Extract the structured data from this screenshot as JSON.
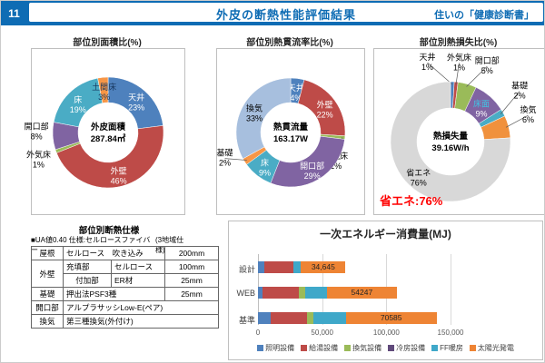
{
  "header": {
    "slide_number": "11",
    "title": "外皮の断熱性能評価結果",
    "right_label": "住いの「健康診断書」",
    "bar_color": "#0E6CB4"
  },
  "chart_data": [
    {
      "type": "pie",
      "title": "部位別面積比(%)",
      "center_label": [
        "外皮面積",
        "287.84㎡"
      ],
      "slices": [
        {
          "label": "天井",
          "pct": 23,
          "color": "#4E81BD",
          "text": "#FFFFFF",
          "pos": "in"
        },
        {
          "label": "外壁",
          "pct": 46,
          "color": "#BE4B48",
          "text": "#FFFFFF",
          "pos": "in"
        },
        {
          "label": "外気床",
          "pct": 1,
          "color": "#9ABB59",
          "text": "#000000",
          "pos": "out"
        },
        {
          "label": "開口部",
          "pct": 8,
          "color": "#8064A2",
          "text": "#000000",
          "pos": "out"
        },
        {
          "label": "床",
          "pct": 19,
          "color": "#4AACC5",
          "text": "#FFFFFF",
          "pos": "in"
        },
        {
          "label": "土間床",
          "pct": 3,
          "color": "#F79646",
          "text": "#17375E",
          "pos": "in"
        }
      ]
    },
    {
      "type": "pie",
      "title": "部位別熱貫流率比(%)",
      "center_label": [
        "熱貫流量",
        "163.17W"
      ],
      "slices": [
        {
          "label": "天井",
          "pct": 4,
          "color": "#4E81BD",
          "text": "#FFFFFF",
          "pos": "in"
        },
        {
          "label": "外壁",
          "pct": 22,
          "color": "#BE4B48",
          "text": "#FFFFFF",
          "pos": "in"
        },
        {
          "label": "外気床",
          "pct": 1,
          "color": "#9ABB59",
          "text": "#000000",
          "pos": "out"
        },
        {
          "label": "開口部",
          "pct": 29,
          "color": "#8064A2",
          "text": "#FFFFFF",
          "pos": "in"
        },
        {
          "label": "床",
          "pct": 9,
          "color": "#4AACC5",
          "text": "#FFFFFF",
          "pos": "in"
        },
        {
          "label": "基礎",
          "pct": 2,
          "color": "#F79646",
          "text": "#000000",
          "pos": "out"
        },
        {
          "label": "換気",
          "pct": 33,
          "color": "#A7BFDE",
          "text": "#000000",
          "pos": "in"
        }
      ]
    },
    {
      "type": "pie",
      "title": "部位別熱損失比(%)",
      "center_label": [
        "熱損失量",
        "39.16W/h"
      ],
      "annotation": "省エネ:76%",
      "annotation_color": "#FF0000",
      "slices": [
        {
          "label": "天井",
          "pct": 1,
          "color": "#4E81BD",
          "text": "#000000",
          "pos": "out"
        },
        {
          "label": "外気床",
          "pct": 1,
          "color": "#BE4B48",
          "text": "#000000",
          "pos": "out"
        },
        {
          "label": "開口部",
          "pct": 5,
          "color": "#9ABB59",
          "text": "#000000",
          "pos": "out"
        },
        {
          "label": "床面",
          "pct": 9,
          "color": "#8064A2",
          "text": "#3FC6E4",
          "text2": "#FFFFFF",
          "pos": "in"
        },
        {
          "label": "基礎",
          "pct": 2,
          "color": "#4AACC5",
          "text": "#000000",
          "pos": "out"
        },
        {
          "label": "換気",
          "pct": 6,
          "color": "#F0913D",
          "text": "#000000",
          "pos": "out"
        },
        {
          "label": "省エネ",
          "pct": 76,
          "color": "#D8D8D8",
          "text": "#000000",
          "pos": "in"
        }
      ]
    },
    {
      "type": "bar",
      "title": "一次エネルギー消費量(MJ)",
      "orientation": "horizontal-stacked",
      "categories": [
        "設計",
        "WEB",
        "基準"
      ],
      "series": [
        {
          "name": "照明設備",
          "color": "#4F81BD",
          "values": [
            5000,
            3500,
            10000
          ]
        },
        {
          "name": "給湯設備",
          "color": "#BE4B48",
          "values": [
            22500,
            28500,
            28000
          ]
        },
        {
          "name": "換気設備",
          "color": "#9BBB59",
          "values": [
            0,
            4800,
            5500
          ]
        },
        {
          "name": "冷房設備",
          "color": "#604A7B",
          "values": [
            0,
            0,
            0
          ]
        },
        {
          "name": "FF暖房",
          "color": "#3FA8C9",
          "values": [
            6000,
            17000,
            25000
          ]
        },
        {
          "name": "太陽光発電",
          "color": "#EE8434",
          "values": [
            34645,
            54247,
            70585
          ]
        }
      ],
      "value_labels": [
        "34,645",
        "54247",
        "70585"
      ],
      "value_label_series": "太陽光発電",
      "x_ticks": [
        "0",
        "50,000",
        "100,000",
        "150,000"
      ],
      "x_max": 150000,
      "legend_position": "bottom"
    }
  ],
  "spec_table": {
    "title": "部位別断熱仕様",
    "subtitle_left": "■UA値0.40 仕様:セルロースファイバー",
    "subtitle_right": "(3地域仕様)",
    "rows": [
      {
        "cells": [
          {
            "t": "屋根"
          },
          {
            "t": "セルロース　吹き込み",
            "cs": 2
          },
          {
            "t": "200mm"
          }
        ]
      },
      {
        "cells": [
          {
            "t": "外壁",
            "rs": 2
          },
          {
            "t": "充填部"
          },
          {
            "t": "セルロース"
          },
          {
            "t": "100mm"
          }
        ]
      },
      {
        "cells": [
          {
            "t": "付加部"
          },
          {
            "t": "ER材"
          },
          {
            "t": "25mm"
          }
        ]
      },
      {
        "cells": [
          {
            "t": "基礎"
          },
          {
            "t": "押出法PSF3種",
            "cs": 2
          },
          {
            "t": "25mm"
          }
        ]
      },
      {
        "cells": [
          {
            "t": "開口部"
          },
          {
            "t": "アルプラサッシLow-E(ペア)",
            "cs": 3
          }
        ]
      },
      {
        "cells": [
          {
            "t": "換気"
          },
          {
            "t": "第三種換気(外付け)",
            "cs": 3
          }
        ]
      }
    ]
  }
}
